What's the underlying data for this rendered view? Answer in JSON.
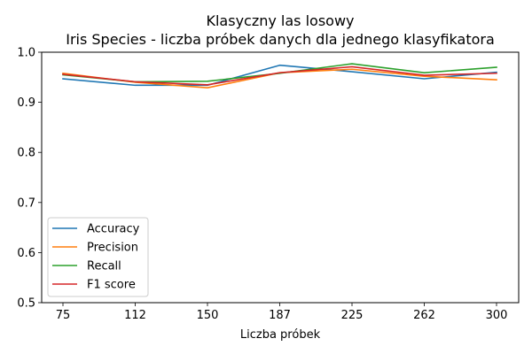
{
  "chart_data": {
    "type": "line",
    "title": "Klasyczny las losowy",
    "subtitle": "Iris Species - liczba próbek danych dla jednego klasyfikatora",
    "xlabel": "Liczba próbek",
    "ylabel": "",
    "categories": [
      "75",
      "112",
      "150",
      "187",
      "225",
      "262",
      "300"
    ],
    "x": [
      75,
      112,
      150,
      187,
      225,
      262,
      300
    ],
    "ylim": [
      0.5,
      1.0
    ],
    "yticks": [
      "0.5",
      "0.6",
      "0.7",
      "0.8",
      "0.9",
      "1.0"
    ],
    "ytick_values": [
      0.5,
      0.6,
      0.7,
      0.8,
      0.9,
      1.0
    ],
    "grid": false,
    "legend_position": "lower-left",
    "series": [
      {
        "name": "Accuracy",
        "color": "#1f77b4",
        "values": [
          0.947,
          0.934,
          0.934,
          0.974,
          0.961,
          0.947,
          0.96
        ]
      },
      {
        "name": "Precision",
        "color": "#ff7f0e",
        "values": [
          0.958,
          0.94,
          0.929,
          0.959,
          0.966,
          0.952,
          0.945
        ]
      },
      {
        "name": "Recall",
        "color": "#2ca02c",
        "values": [
          0.955,
          0.941,
          0.942,
          0.958,
          0.977,
          0.959,
          0.97
        ]
      },
      {
        "name": "F1 score",
        "color": "#d62728",
        "values": [
          0.956,
          0.941,
          0.935,
          0.959,
          0.971,
          0.954,
          0.958
        ]
      }
    ]
  }
}
